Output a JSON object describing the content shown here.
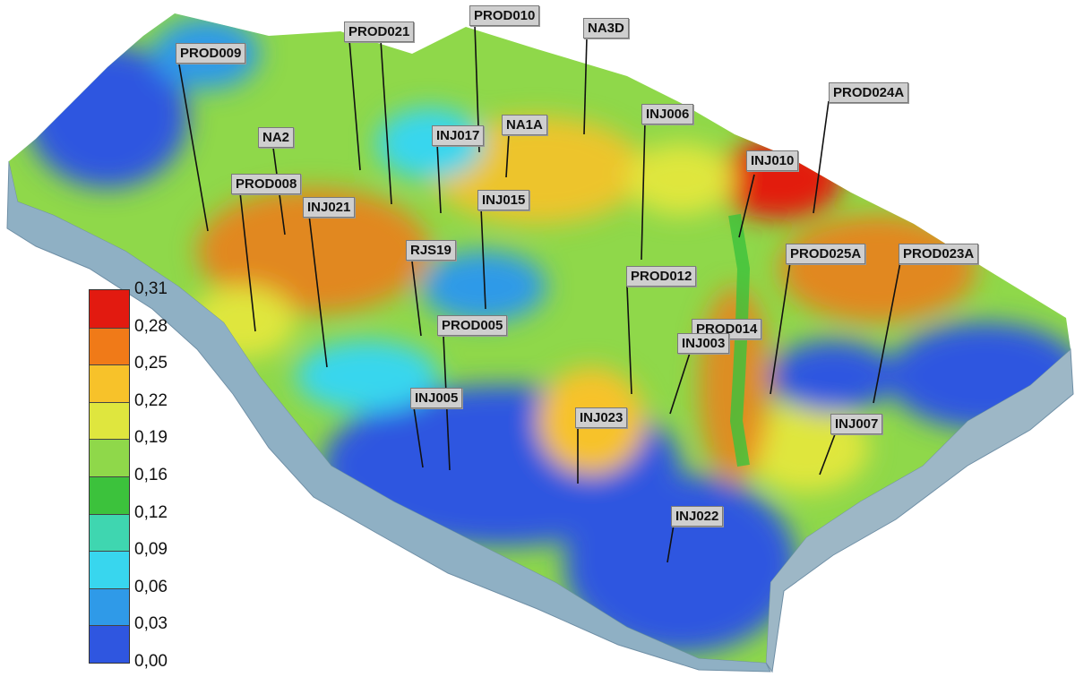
{
  "wells": [
    {
      "id": "PROD009"
    },
    {
      "id": "PROD021"
    },
    {
      "id": "PROD010"
    },
    {
      "id": "NA3D"
    },
    {
      "id": "PROD024A"
    },
    {
      "id": "INJ006"
    },
    {
      "id": "NA2"
    },
    {
      "id": "INJ017"
    },
    {
      "id": "NA1A"
    },
    {
      "id": "INJ010"
    },
    {
      "id": "PROD008"
    },
    {
      "id": "INJ021"
    },
    {
      "id": "INJ015"
    },
    {
      "id": "RJS19"
    },
    {
      "id": "PROD025A"
    },
    {
      "id": "PROD023A"
    },
    {
      "id": "PROD012"
    },
    {
      "id": "PROD005"
    },
    {
      "id": "PROD014"
    },
    {
      "id": "INJ003"
    },
    {
      "id": "INJ005"
    },
    {
      "id": "INJ023"
    },
    {
      "id": "INJ007"
    },
    {
      "id": "INJ022"
    }
  ],
  "legend": {
    "values": [
      "0,31",
      "0,28",
      "0,25",
      "0,22",
      "0,19",
      "0,16",
      "0,12",
      "0,09",
      "0,06",
      "0,03",
      "0,00"
    ],
    "colors": [
      "#e21a10",
      "#f07a18",
      "#f7c22a",
      "#dfe63e",
      "#8fd84a",
      "#3cc23c",
      "#3fd6b0",
      "#38d6ee",
      "#2f9ae8",
      "#2f56e0",
      "#1414cc"
    ]
  },
  "palette": {
    "background": "#ffffff",
    "label_bg": "#cfcfcf",
    "deep_blue": "#2a3fe0",
    "red": "#e21a10"
  }
}
